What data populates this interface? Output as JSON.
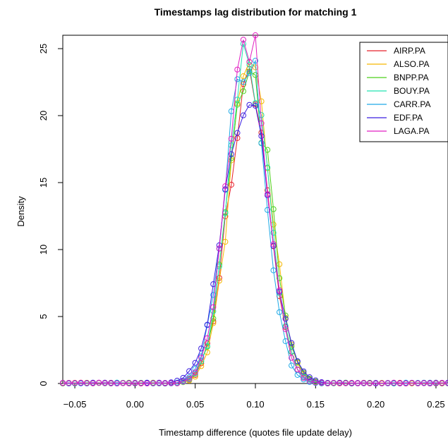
{
  "chart_data": {
    "type": "line",
    "title": "Timestamps lag distribution for matching 1",
    "xlabel": "Timestamp difference (quotes file update delay)",
    "ylabel": "Density",
    "xlim": [
      -0.06,
      0.26
    ],
    "ylim": [
      0,
      26
    ],
    "x_ticks": [
      -0.05,
      0.0,
      0.05,
      0.1,
      0.15,
      0.2,
      0.25
    ],
    "x_tick_labels": [
      "−0.05",
      "0.00",
      "0.05",
      "0.10",
      "0.15",
      "0.20",
      "0.25"
    ],
    "y_ticks": [
      0,
      5,
      10,
      15,
      20,
      25
    ],
    "y_tick_labels": [
      "0",
      "5",
      "10",
      "15",
      "20",
      "25"
    ],
    "grid": false,
    "legend_position": "top-right",
    "series": [
      {
        "name": "AIRP.PA",
        "color": "#e8212b",
        "peak_x": 0.097,
        "peak_y": 23.5,
        "center": 0.094,
        "sigma": 0.0165
      },
      {
        "name": "ALSO.PA",
        "color": "#f5b800",
        "peak_x": 0.096,
        "peak_y": 24.0,
        "center": 0.096,
        "sigma": 0.0168
      },
      {
        "name": "BNPP.PA",
        "color": "#4cd11a",
        "peak_x": 0.094,
        "peak_y": 23.3,
        "center": 0.095,
        "sigma": 0.0172
      },
      {
        "name": "BOUY.PA",
        "color": "#20e4b0",
        "peak_x": 0.097,
        "peak_y": 23.8,
        "center": 0.094,
        "sigma": 0.0166
      },
      {
        "name": "CARR.PA",
        "color": "#1ea9e6",
        "peak_x": 0.098,
        "peak_y": 24.1,
        "center": 0.091,
        "sigma": 0.0165
      },
      {
        "name": "EDF.PA",
        "color": "#3b1ee0",
        "peak_x": 0.096,
        "peak_y": 20.8,
        "center": 0.093,
        "sigma": 0.019
      },
      {
        "name": "LAGA.PA",
        "color": "#e21ec2",
        "peak_x": 0.098,
        "peak_y": 26.0,
        "center": 0.093,
        "sigma": 0.0165
      }
    ]
  }
}
